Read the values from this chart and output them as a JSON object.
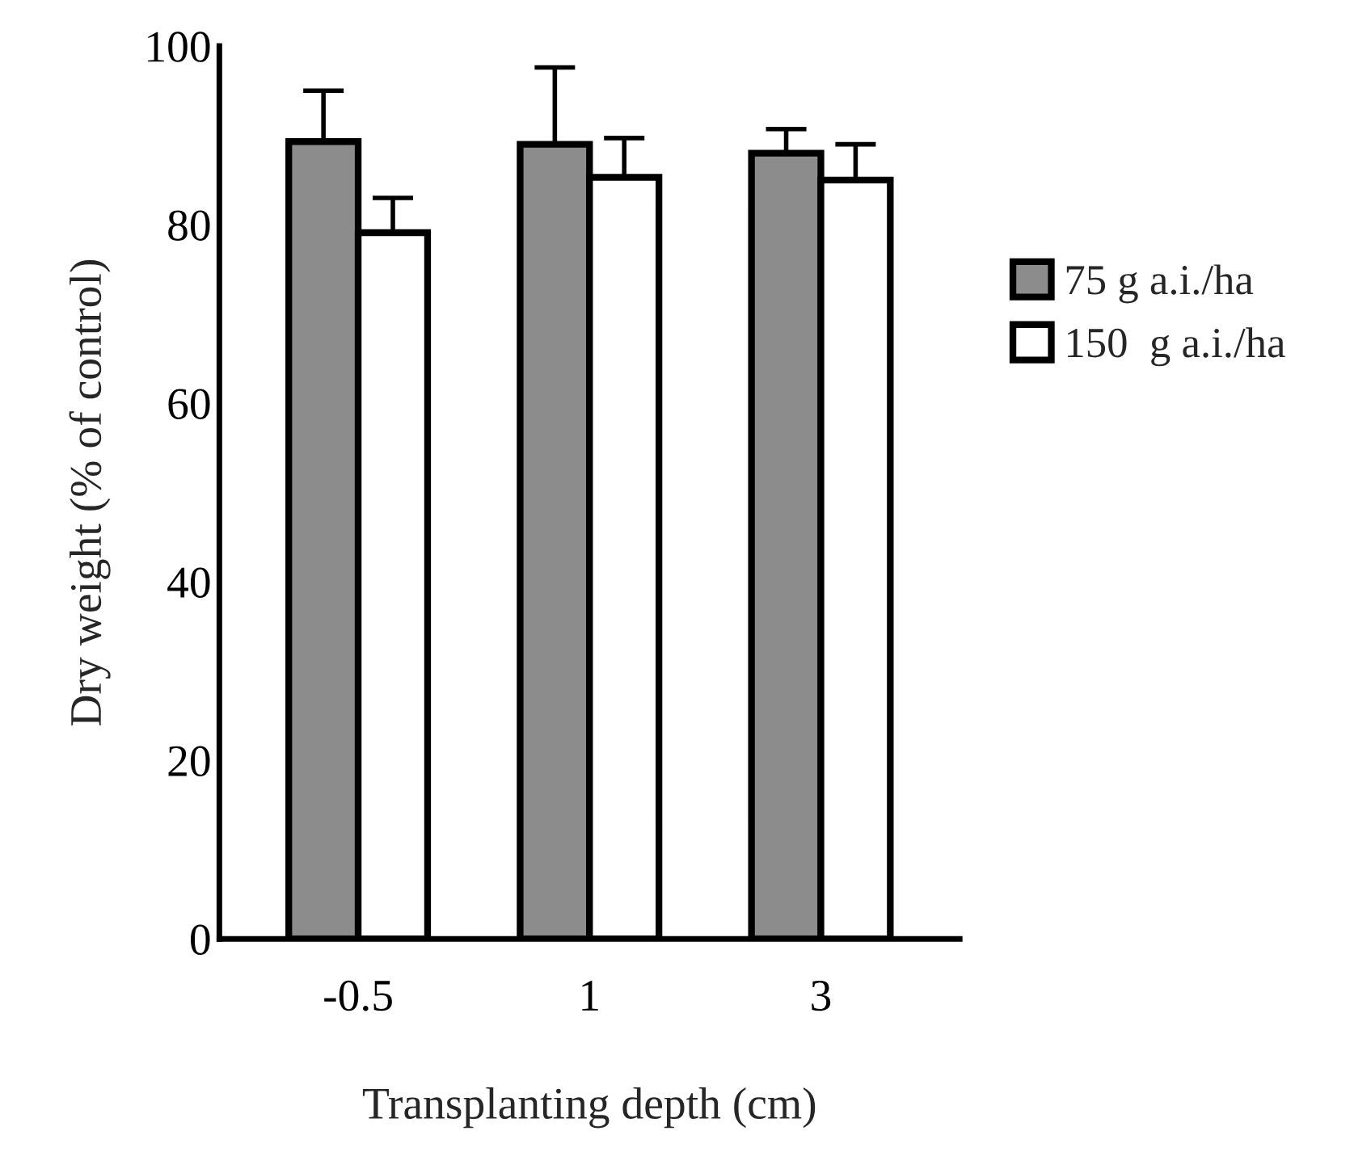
{
  "chart_data": {
    "type": "bar",
    "xlabel": "Transplanting depth (cm)",
    "ylabel": "Dry weight (% of control)",
    "categories": [
      "-0.5",
      "1",
      "3"
    ],
    "series": [
      {
        "name": "75 g a.i./ha",
        "color": "#8c8c8c",
        "values": [
          89.3,
          89,
          88
        ],
        "errors": [
          [
            89.3,
            95
          ],
          [
            89,
            97.6
          ],
          [
            88,
            90.7
          ]
        ]
      },
      {
        "name": "150  g a.i./ha",
        "color": "#ffffff",
        "values": [
          79.1,
          85.3,
          85
        ],
        "errors": [
          [
            79.1,
            83
          ],
          [
            85.3,
            89.7
          ],
          [
            85,
            89
          ]
        ]
      }
    ],
    "ylim": [
      0,
      100
    ],
    "yticks": [
      0,
      20,
      40,
      60,
      80,
      100
    ],
    "grid": false,
    "legend": "right"
  }
}
